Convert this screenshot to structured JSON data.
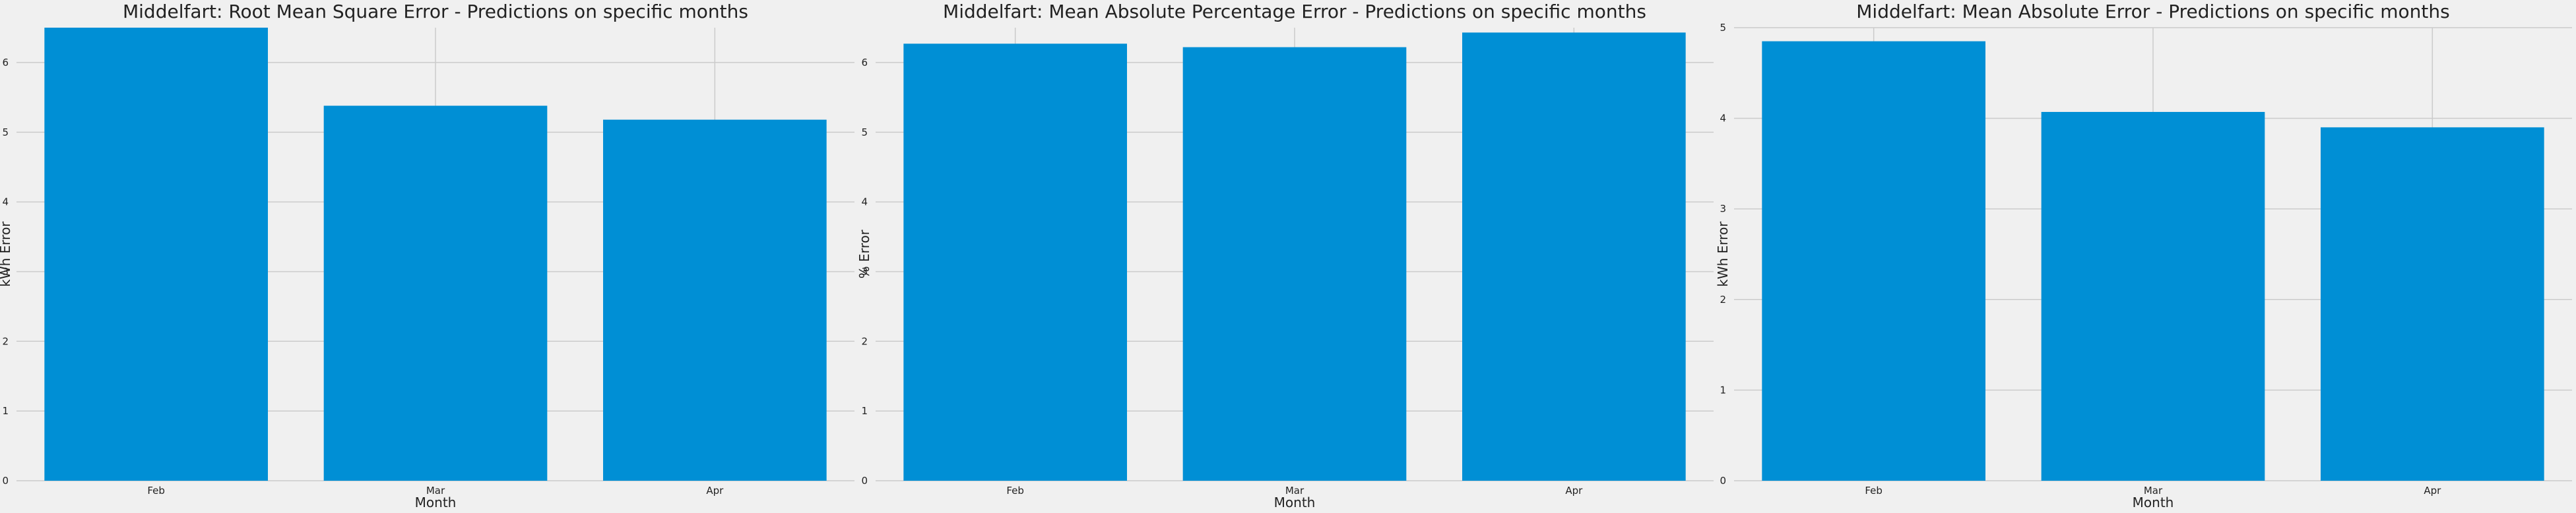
{
  "colors": {
    "background": "#f0f0f0",
    "bar": "#008fd5",
    "grid": "#cbcbcb"
  },
  "chart_data": [
    {
      "type": "bar",
      "title": "Middelfart: Root Mean Square Error - Predictions on specific months",
      "xlabel": "Month",
      "ylabel": "kWh Error",
      "categories": [
        "Feb",
        "Mar",
        "Apr"
      ],
      "values": [
        6.5,
        5.38,
        5.18
      ],
      "ylim": [
        0,
        6.5
      ],
      "yticks": [
        0,
        1,
        2,
        3,
        4,
        5,
        6
      ],
      "grid": true
    },
    {
      "type": "bar",
      "title": "Middelfart: Mean Absolute Percentage Error - Predictions on specific months",
      "xlabel": "Month",
      "ylabel": "% Error",
      "categories": [
        "Feb",
        "Mar",
        "Apr"
      ],
      "values": [
        6.27,
        6.22,
        6.43
      ],
      "ylim": [
        0,
        6.5
      ],
      "yticks": [
        0,
        1,
        2,
        3,
        4,
        5,
        6
      ],
      "grid": true
    },
    {
      "type": "bar",
      "title": "Middelfart: Mean Absolute Error - Predictions on specific months",
      "xlabel": "Month",
      "ylabel": "kWh Error",
      "categories": [
        "Feb",
        "Mar",
        "Apr"
      ],
      "values": [
        4.85,
        4.07,
        3.9
      ],
      "ylim": [
        0,
        5
      ],
      "yticks": [
        0,
        1,
        2,
        3,
        4,
        5
      ],
      "grid": true
    }
  ]
}
